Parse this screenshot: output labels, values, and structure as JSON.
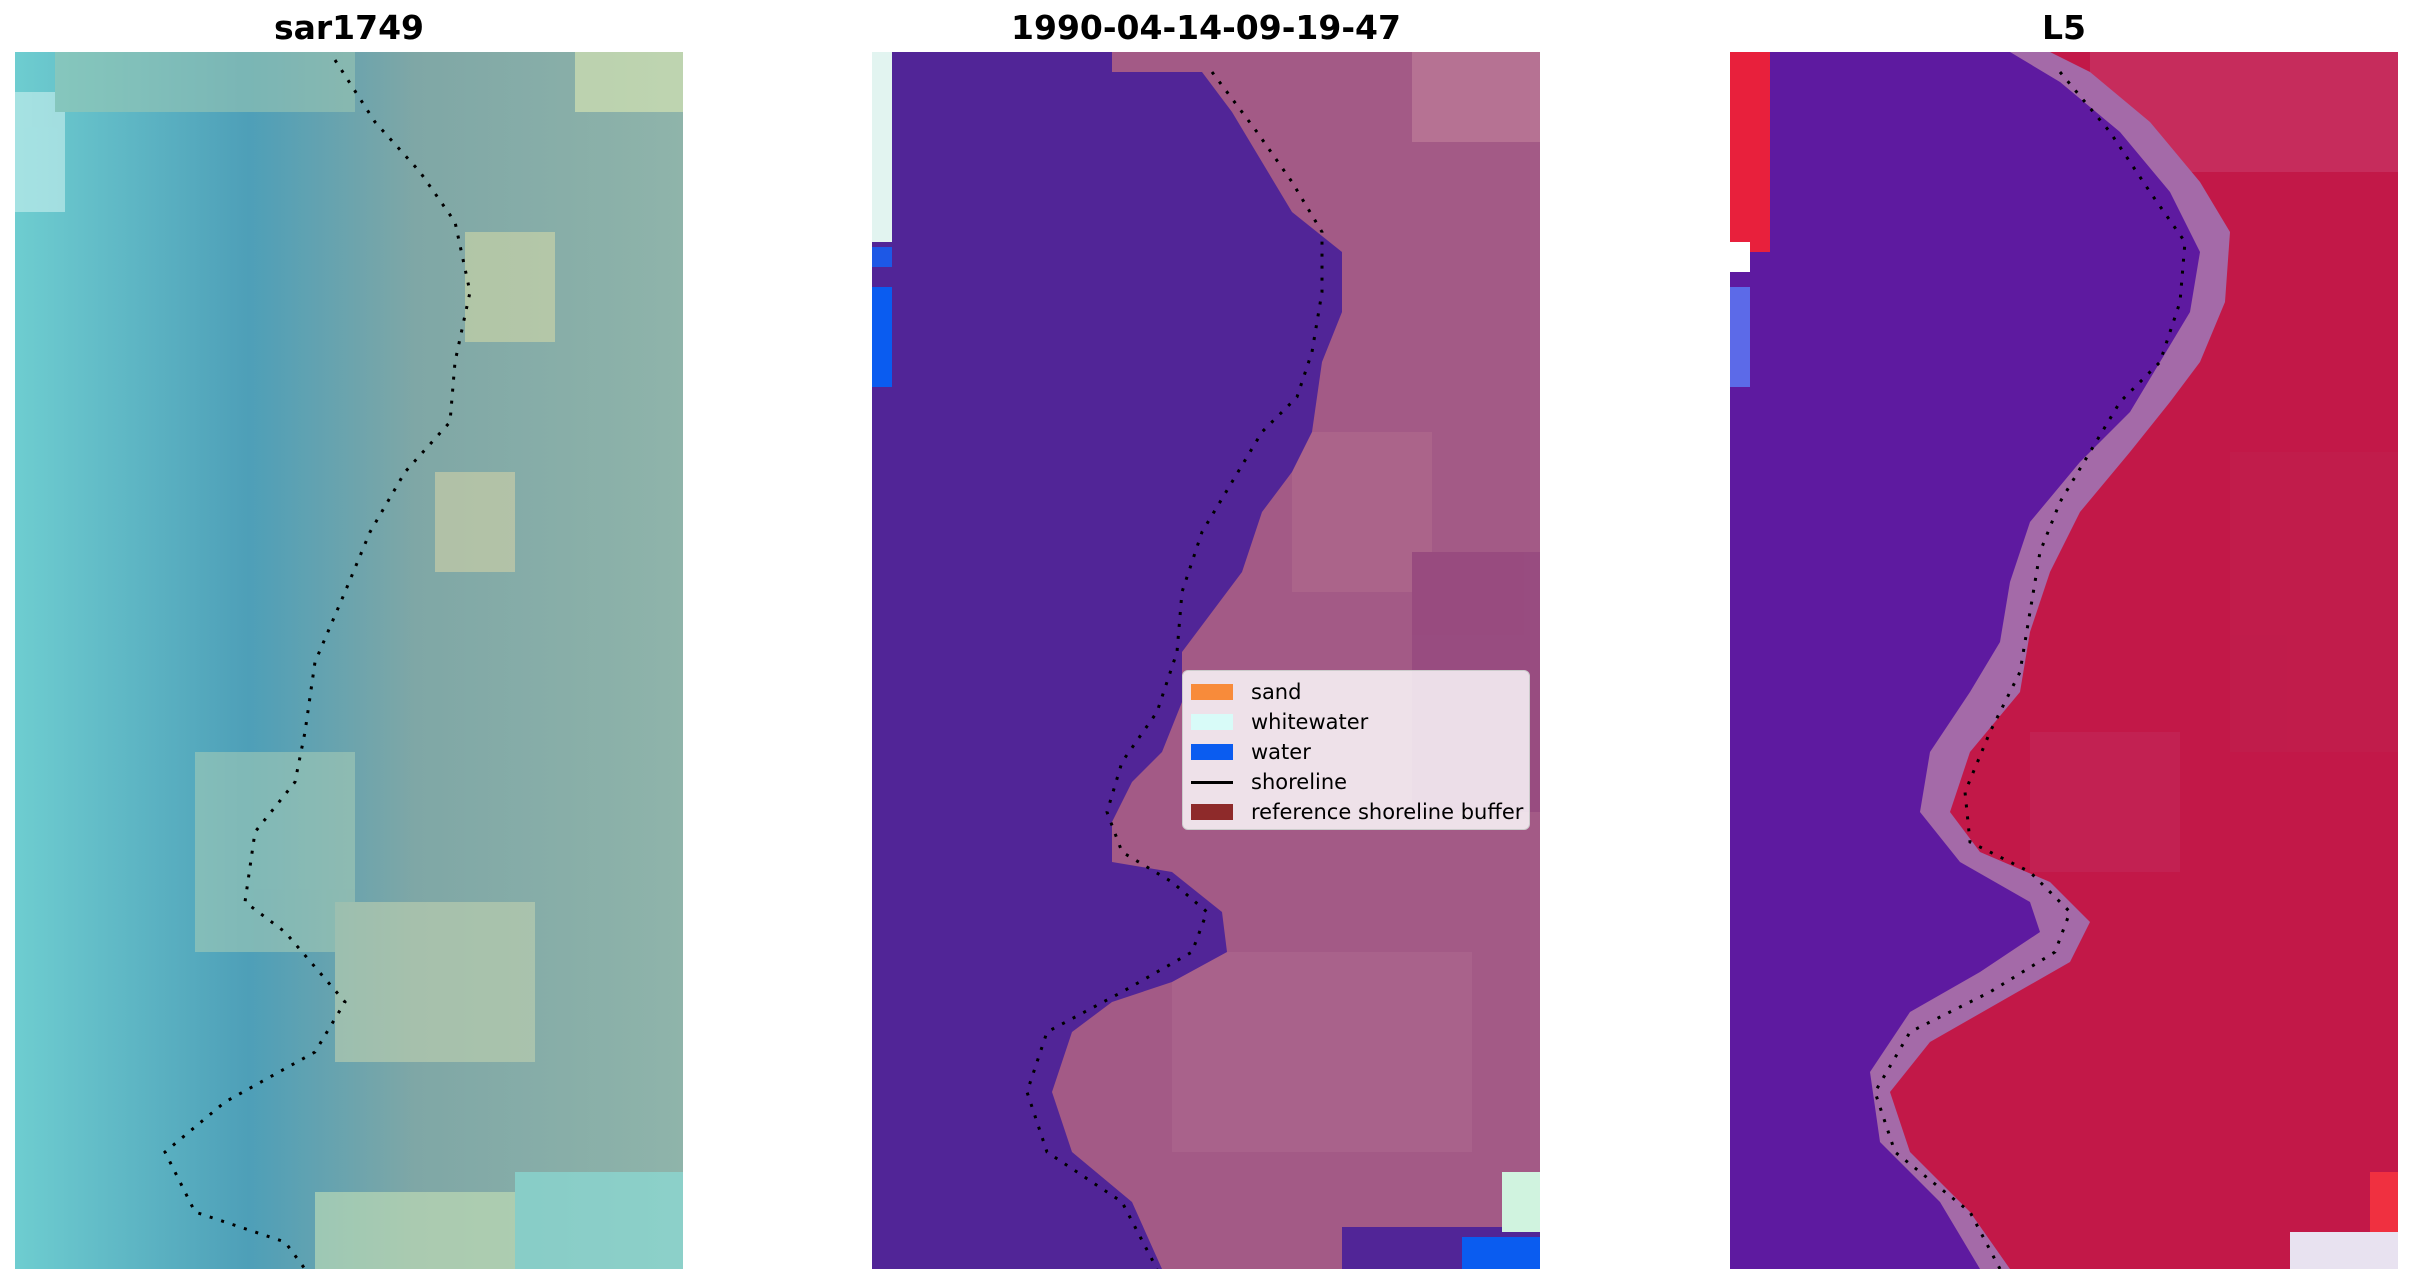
{
  "panels": [
    {
      "title": "sar1749"
    },
    {
      "title": "1990-04-14-09-19-47"
    },
    {
      "title": "L5"
    }
  ],
  "legend": {
    "items": [
      {
        "label": "sand",
        "color": "#f88b3a",
        "kind": "patch"
      },
      {
        "label": "whitewater",
        "color": "#d8fbf8",
        "kind": "patch"
      },
      {
        "label": "water",
        "color": "#0a5cf0",
        "kind": "patch"
      },
      {
        "label": "shoreline",
        "color": "#000000",
        "kind": "line"
      },
      {
        "label": "reference shoreline buffer",
        "color": "#8e2a2a",
        "kind": "patch"
      }
    ]
  },
  "colors": {
    "sar_water": "#5fb6c6",
    "sar_land": "#9fc2b0",
    "class_water_overlay": "#512597",
    "class_land": "#a35a86",
    "l5_water": "#5e1aa0",
    "l5_land": "#c21848",
    "shoreline": "#000000"
  }
}
